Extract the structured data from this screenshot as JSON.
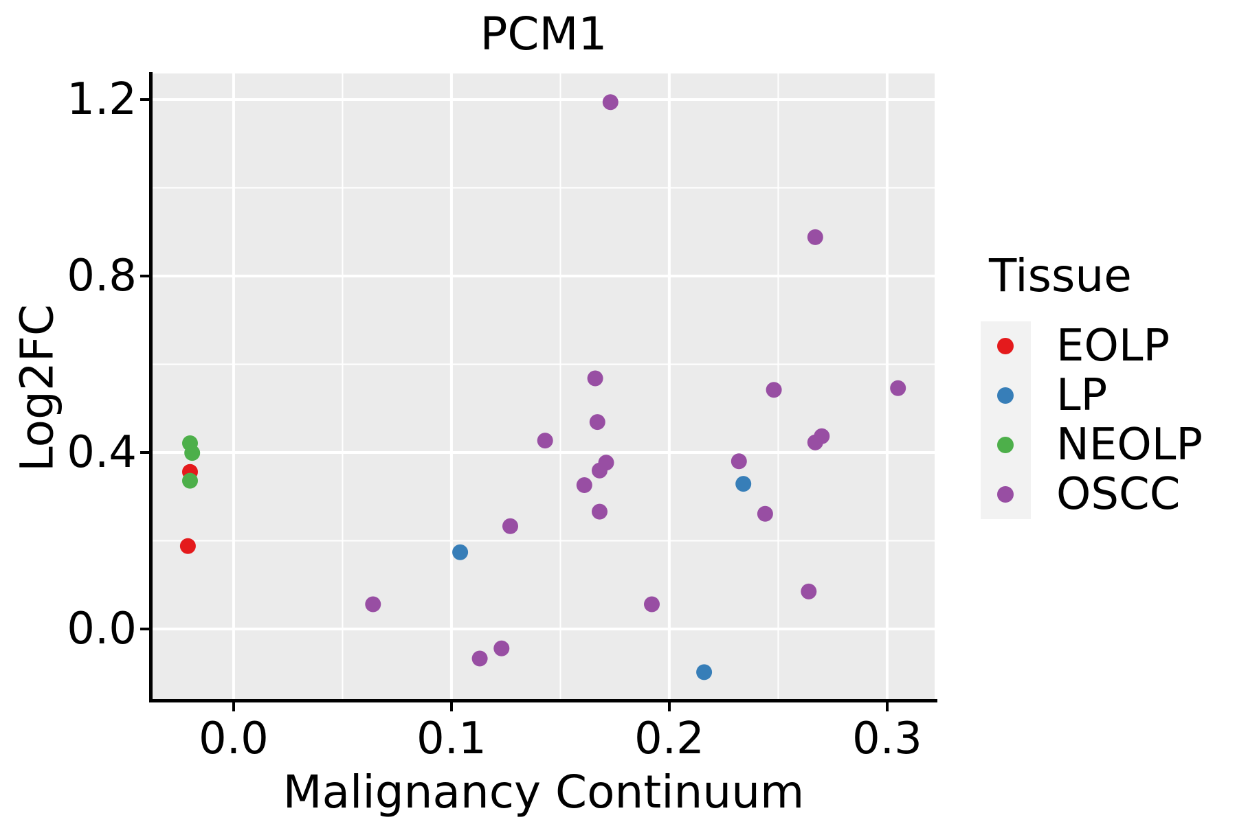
{
  "title": "PCM1",
  "axes": {
    "x": {
      "label": "Malignancy Continuum",
      "tick_values": [
        0.0,
        0.1,
        0.2,
        0.3
      ],
      "tick_labels": [
        "0.0",
        "0.1",
        "0.2",
        "0.3"
      ],
      "minor_values": [
        0.05,
        0.15,
        0.25
      ],
      "range": [
        -0.0372,
        0.3218
      ]
    },
    "y": {
      "label": "Log2FC",
      "tick_values": [
        0.0,
        0.4,
        0.8,
        1.2
      ],
      "tick_labels": [
        "0.0",
        "0.4",
        "0.8",
        "1.2"
      ],
      "minor_values": [
        0.2,
        0.6,
        1.0
      ],
      "range": [
        -0.1619,
        1.2591
      ]
    }
  },
  "legend": {
    "title": "Tissue",
    "entries": [
      {
        "label": "EOLP",
        "color": "#E41A1C"
      },
      {
        "label": "LP",
        "color": "#377EB8"
      },
      {
        "label": "NEOLP",
        "color": "#4DAF4A"
      },
      {
        "label": "OSCC",
        "color": "#984EA3"
      }
    ]
  },
  "style_colors": {
    "panel_background": "#EBEBEB",
    "gridline": "#FFFFFF",
    "legend_key_background": "#F2F2F2",
    "axis_and_text": "#000000"
  },
  "chart_data": {
    "type": "scatter",
    "title": "PCM1",
    "xlabel": "Malignancy Continuum",
    "ylabel": "Log2FC",
    "xlim": [
      -0.0372,
      0.3218
    ],
    "ylim": [
      -0.1619,
      1.2591
    ],
    "grid": true,
    "legend_position": "right",
    "series": [
      {
        "name": "EOLP",
        "color": "#E41A1C",
        "points": [
          [
            -0.02,
            0.356
          ],
          [
            -0.021,
            0.188
          ]
        ]
      },
      {
        "name": "LP",
        "color": "#377EB8",
        "points": [
          [
            0.104,
            0.174
          ],
          [
            0.234,
            0.329
          ],
          [
            0.216,
            -0.098
          ]
        ]
      },
      {
        "name": "NEOLP",
        "color": "#4DAF4A",
        "points": [
          [
            -0.02,
            0.421
          ],
          [
            -0.019,
            0.399
          ],
          [
            -0.02,
            0.336
          ]
        ]
      },
      {
        "name": "OSCC",
        "color": "#984EA3",
        "points": [
          [
            0.173,
            1.194
          ],
          [
            0.267,
            0.888
          ],
          [
            0.166,
            0.568
          ],
          [
            0.248,
            0.542
          ],
          [
            0.305,
            0.546
          ],
          [
            0.167,
            0.469
          ],
          [
            0.143,
            0.427
          ],
          [
            0.267,
            0.423
          ],
          [
            0.27,
            0.437
          ],
          [
            0.168,
            0.359
          ],
          [
            0.171,
            0.377
          ],
          [
            0.232,
            0.38
          ],
          [
            0.161,
            0.326
          ],
          [
            0.168,
            0.266
          ],
          [
            0.244,
            0.261
          ],
          [
            0.127,
            0.233
          ],
          [
            0.064,
            0.056
          ],
          [
            0.192,
            0.056
          ],
          [
            0.264,
            0.085
          ],
          [
            0.113,
            -0.067
          ],
          [
            0.123,
            -0.044
          ]
        ]
      }
    ]
  }
}
